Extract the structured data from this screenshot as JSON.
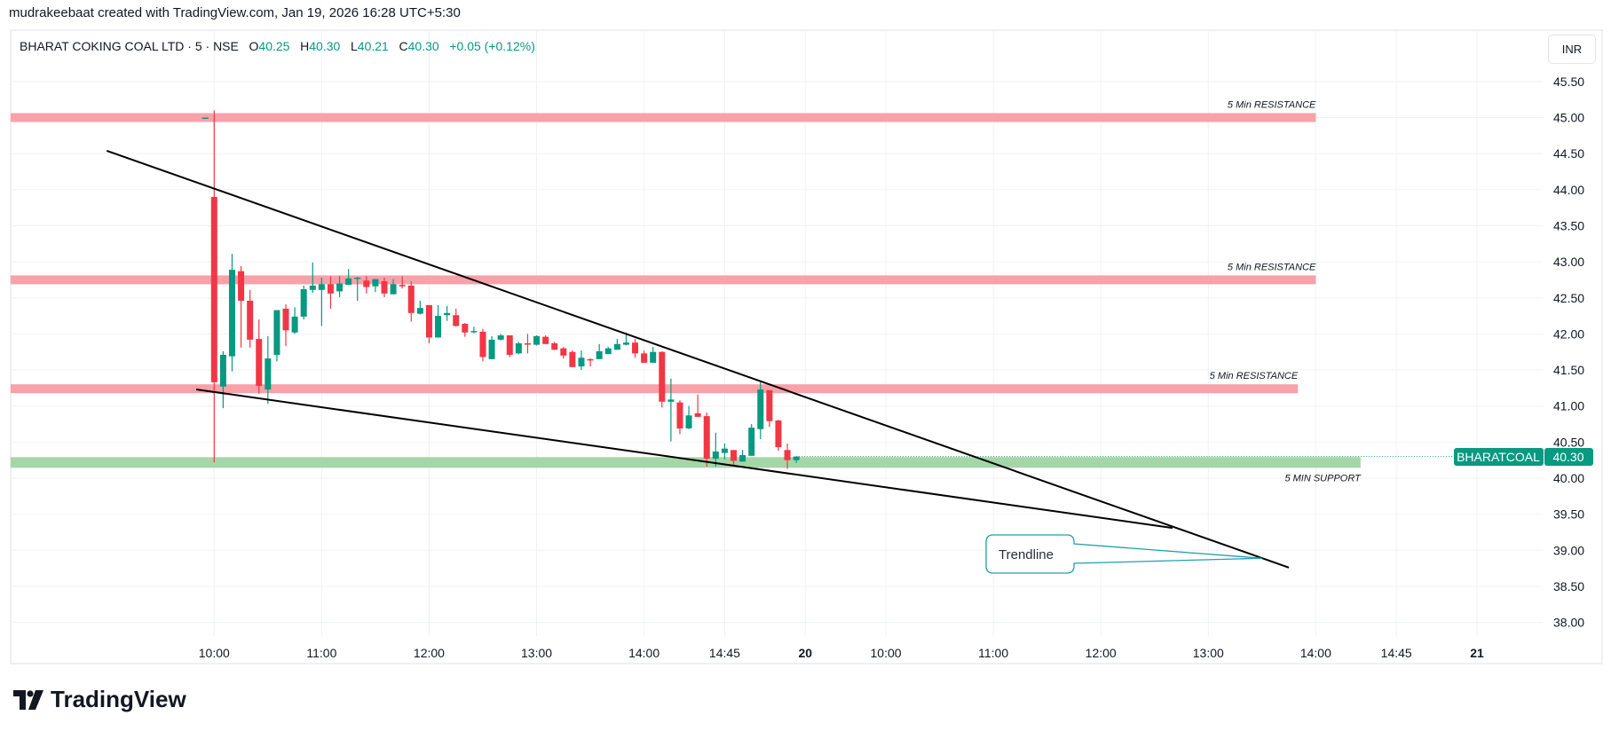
{
  "header": {
    "credit": "mudrakeebaat created with TradingView.com, Jan 19, 2026 16:28 UTC+5:30"
  },
  "legend": {
    "symbol": "BHARAT COKING COAL LTD · 5 · NSE",
    "o_label": "O",
    "o": "40.25",
    "h_label": "H",
    "h": "40.30",
    "l_label": "L",
    "l": "40.21",
    "c_label": "C",
    "c": "40.30",
    "change": "+0.05 (+0.12%)"
  },
  "currency": "INR",
  "colors": {
    "up": "#089981",
    "down": "#f23645",
    "resistance": "#f7a1a9",
    "support": "#a5d6a7",
    "callout": "#22a0ac",
    "trendline": "#000000"
  },
  "price_badge": {
    "symbol": "BHARATCOAL",
    "price": "40.30",
    "value": 40.3
  },
  "brand": "TradingView",
  "chart_data": {
    "type": "candlestick",
    "ylim": [
      37.7,
      46.0
    ],
    "grid": true,
    "y_ticks": [
      "45.50",
      "45.00",
      "44.50",
      "44.00",
      "43.50",
      "43.00",
      "42.50",
      "42.00",
      "41.50",
      "41.00",
      "40.50",
      "40.00",
      "39.50",
      "39.00",
      "38.50",
      "38.00"
    ],
    "x_ticks": [
      {
        "label": "10:00",
        "day": 19,
        "time": "10:00",
        "bold": false
      },
      {
        "label": "11:00",
        "day": 19,
        "time": "11:00",
        "bold": false
      },
      {
        "label": "12:00",
        "day": 19,
        "time": "12:00",
        "bold": false
      },
      {
        "label": "13:00",
        "day": 19,
        "time": "13:00",
        "bold": false
      },
      {
        "label": "14:00",
        "day": 19,
        "time": "14:00",
        "bold": false
      },
      {
        "label": "14:45",
        "day": 19,
        "time": "14:45",
        "bold": false
      },
      {
        "label": "20",
        "day": 20,
        "time": "09:15",
        "bold": true
      },
      {
        "label": "10:00",
        "day": 20,
        "time": "10:00",
        "bold": false
      },
      {
        "label": "11:00",
        "day": 20,
        "time": "11:00",
        "bold": false
      },
      {
        "label": "12:00",
        "day": 20,
        "time": "12:00",
        "bold": false
      },
      {
        "label": "13:00",
        "day": 20,
        "time": "13:00",
        "bold": false
      },
      {
        "label": "14:00",
        "day": 20,
        "time": "14:00",
        "bold": false
      },
      {
        "label": "14:45",
        "day": 20,
        "time": "14:45",
        "bold": false
      },
      {
        "label": "21",
        "day": 21,
        "time": "09:15",
        "bold": true
      }
    ],
    "candles_day": 19,
    "candles_ohlc": [
      [
        "09:55",
        45,
        45,
        45,
        45
      ],
      [
        "10:00",
        43.9,
        45.1,
        40.22,
        41.33
      ],
      [
        "10:05",
        41.27,
        41.76,
        40.97,
        41.71
      ],
      [
        "10:10",
        41.69,
        43.11,
        41.48,
        42.89
      ],
      [
        "10:15",
        42.87,
        42.94,
        41.81,
        42.46
      ],
      [
        "10:20",
        42.46,
        42.61,
        41.81,
        41.92
      ],
      [
        "10:25",
        41.93,
        42.2,
        41.17,
        41.28
      ],
      [
        "10:30",
        41.23,
        41.97,
        41.03,
        41.66
      ],
      [
        "10:35",
        41.71,
        42.33,
        41.62,
        42.33
      ],
      [
        "10:40",
        42.35,
        42.41,
        41.83,
        42.05
      ],
      [
        "10:45",
        42.02,
        42.37,
        42.0,
        42.24
      ],
      [
        "10:50",
        42.24,
        42.67,
        42.2,
        42.62
      ],
      [
        "10:55",
        42.61,
        42.99,
        42.57,
        42.67
      ],
      [
        "11:00",
        42.61,
        42.78,
        42.11,
        42.69
      ],
      [
        "11:05",
        42.69,
        42.8,
        42.35,
        42.56
      ],
      [
        "11:10",
        42.59,
        42.8,
        42.51,
        42.7
      ],
      [
        "11:15",
        42.68,
        42.9,
        42.68,
        42.77
      ],
      [
        "11:20",
        42.77,
        42.79,
        42.46,
        42.78
      ],
      [
        "11:25",
        42.74,
        42.8,
        42.56,
        42.65
      ],
      [
        "11:30",
        42.66,
        42.76,
        42.58,
        42.76
      ],
      [
        "11:35",
        42.73,
        42.78,
        42.51,
        42.56
      ],
      [
        "11:40",
        42.55,
        42.76,
        42.55,
        42.69
      ],
      [
        "11:45",
        42.68,
        42.8,
        42.63,
        42.66
      ],
      [
        "11:50",
        42.67,
        42.73,
        42.17,
        42.29
      ],
      [
        "11:55",
        42.28,
        42.46,
        42.27,
        42.36
      ],
      [
        "12:00",
        42.4,
        42.4,
        41.87,
        41.95
      ],
      [
        "12:05",
        41.95,
        42.4,
        41.95,
        42.25
      ],
      [
        "12:10",
        42.26,
        42.39,
        42.18,
        42.29
      ],
      [
        "12:15",
        42.26,
        42.35,
        42.1,
        42.11
      ],
      [
        "12:20",
        42.14,
        42.15,
        41.96,
        42.02
      ],
      [
        "12:25",
        42.03,
        42.1,
        42.01,
        42.04
      ],
      [
        "12:30",
        42.03,
        42.07,
        41.62,
        41.68
      ],
      [
        "12:35",
        41.65,
        41.97,
        41.65,
        41.92
      ],
      [
        "12:40",
        41.92,
        42.0,
        41.91,
        41.98
      ],
      [
        "12:45",
        41.98,
        41.98,
        41.68,
        41.71
      ],
      [
        "12:50",
        41.73,
        41.89,
        41.72,
        41.87
      ],
      [
        "12:55",
        41.87,
        42.0,
        41.73,
        41.86
      ],
      [
        "13:00",
        41.85,
        41.98,
        41.84,
        41.97
      ],
      [
        "13:05",
        41.96,
        41.98,
        41.86,
        41.86
      ],
      [
        "13:10",
        41.87,
        41.89,
        41.78,
        41.78
      ],
      [
        "13:15",
        41.8,
        41.82,
        41.66,
        41.7
      ],
      [
        "13:20",
        41.75,
        41.77,
        41.54,
        41.54
      ],
      [
        "13:25",
        41.55,
        41.77,
        41.5,
        41.67
      ],
      [
        "13:30",
        41.65,
        41.66,
        41.55,
        41.64
      ],
      [
        "13:35",
        41.65,
        41.86,
        41.65,
        41.76
      ],
      [
        "13:40",
        41.72,
        41.82,
        41.72,
        41.8
      ],
      [
        "13:45",
        41.78,
        41.93,
        41.78,
        41.86
      ],
      [
        "13:50",
        41.85,
        42.02,
        41.84,
        41.88
      ],
      [
        "13:55",
        41.88,
        41.93,
        41.67,
        41.73
      ],
      [
        "14:00",
        41.73,
        41.77,
        41.6,
        41.6
      ],
      [
        "14:05",
        41.6,
        41.82,
        41.6,
        41.75
      ],
      [
        "14:10",
        41.75,
        41.76,
        40.98,
        41.06
      ],
      [
        "14:15",
        41.06,
        41.38,
        40.51,
        41.09
      ],
      [
        "14:20",
        41.05,
        41.08,
        40.61,
        40.69
      ],
      [
        "14:25",
        40.69,
        41.0,
        40.68,
        40.87
      ],
      [
        "14:30",
        40.9,
        41.16,
        40.85,
        40.85
      ],
      [
        "14:35",
        40.86,
        40.91,
        40.16,
        40.27
      ],
      [
        "14:40",
        40.27,
        40.63,
        40.16,
        40.37
      ],
      [
        "14:45",
        40.35,
        40.48,
        40.26,
        40.41
      ],
      [
        "14:50",
        40.39,
        40.39,
        40.18,
        40.24
      ],
      [
        "14:55",
        40.23,
        40.39,
        40.23,
        40.32
      ],
      [
        "15:00",
        40.31,
        40.75,
        40.31,
        40.7
      ],
      [
        "15:05",
        40.68,
        41.33,
        40.54,
        41.23
      ],
      [
        "15:10",
        41.22,
        41.22,
        40.71,
        40.79
      ],
      [
        "15:15",
        40.8,
        40.81,
        40.38,
        40.43
      ],
      [
        "15:20",
        40.39,
        40.48,
        40.13,
        40.25
      ],
      [
        "15:25",
        40.25,
        40.3,
        40.21,
        40.3
      ]
    ],
    "zones": [
      {
        "label": "5 Min RESISTANCE",
        "price": 45.0,
        "kind": "resistance",
        "end_day": 20,
        "end_time": "14:00",
        "label_pos": "above"
      },
      {
        "label": "5 Min RESISTANCE",
        "price": 42.75,
        "kind": "resistance",
        "end_day": 20,
        "end_time": "14:00",
        "label_pos": "above"
      },
      {
        "label": "5 Min RESISTANCE",
        "price": 41.24,
        "kind": "resistance",
        "end_day": 20,
        "end_time": "13:50",
        "label_pos": "above"
      },
      {
        "label": "5 MIN SUPPORT",
        "price": 40.23,
        "kind": "support",
        "end_day": 20,
        "end_time": "14:25",
        "label_pos": "below"
      }
    ],
    "trendlines": [
      {
        "from": {
          "day": 19,
          "time": "09:00",
          "price": 44.54
        },
        "to": {
          "day": 20,
          "time": "13:45",
          "price": 38.76
        }
      },
      {
        "from": {
          "day": 19,
          "time": "09:50",
          "price": 41.23
        },
        "to": {
          "day": 20,
          "time": "12:40",
          "price": 39.31
        }
      }
    ],
    "callout": {
      "text": "Trendline",
      "target": {
        "day": 20,
        "time": "13:30",
        "price": 38.89
      }
    }
  }
}
